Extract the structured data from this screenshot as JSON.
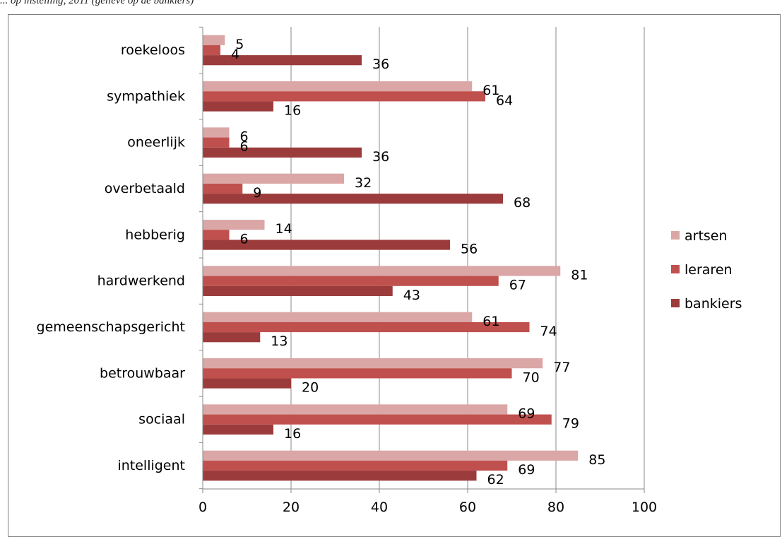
{
  "caption": "... op instelling, 2011 (gelieve op de bankiers)",
  "chart_data": {
    "type": "bar",
    "orientation": "horizontal",
    "categories": [
      "intelligent",
      "sociaal",
      "betrouwbaar",
      "gemeenschapsgericht",
      "hardwerkend",
      "hebberig",
      "overbetaald",
      "oneerlijk",
      "sympathiek",
      "roekeloos"
    ],
    "series": [
      {
        "name": "artsen",
        "color": "#dba6a6",
        "values": [
          85,
          69,
          77,
          61,
          81,
          14,
          32,
          6,
          61,
          5
        ]
      },
      {
        "name": "leraren",
        "color": "#c0504d",
        "values": [
          69,
          79,
          70,
          74,
          67,
          6,
          9,
          6,
          64,
          4
        ]
      },
      {
        "name": "bankiers",
        "color": "#9b3b3b",
        "values": [
          62,
          16,
          20,
          13,
          43,
          56,
          68,
          36,
          16,
          36
        ]
      }
    ],
    "xlim": [
      0,
      100
    ],
    "xticks": [
      0,
      20,
      40,
      60,
      80,
      100
    ],
    "grid": true,
    "legend_position": "right",
    "data_labels": true
  }
}
